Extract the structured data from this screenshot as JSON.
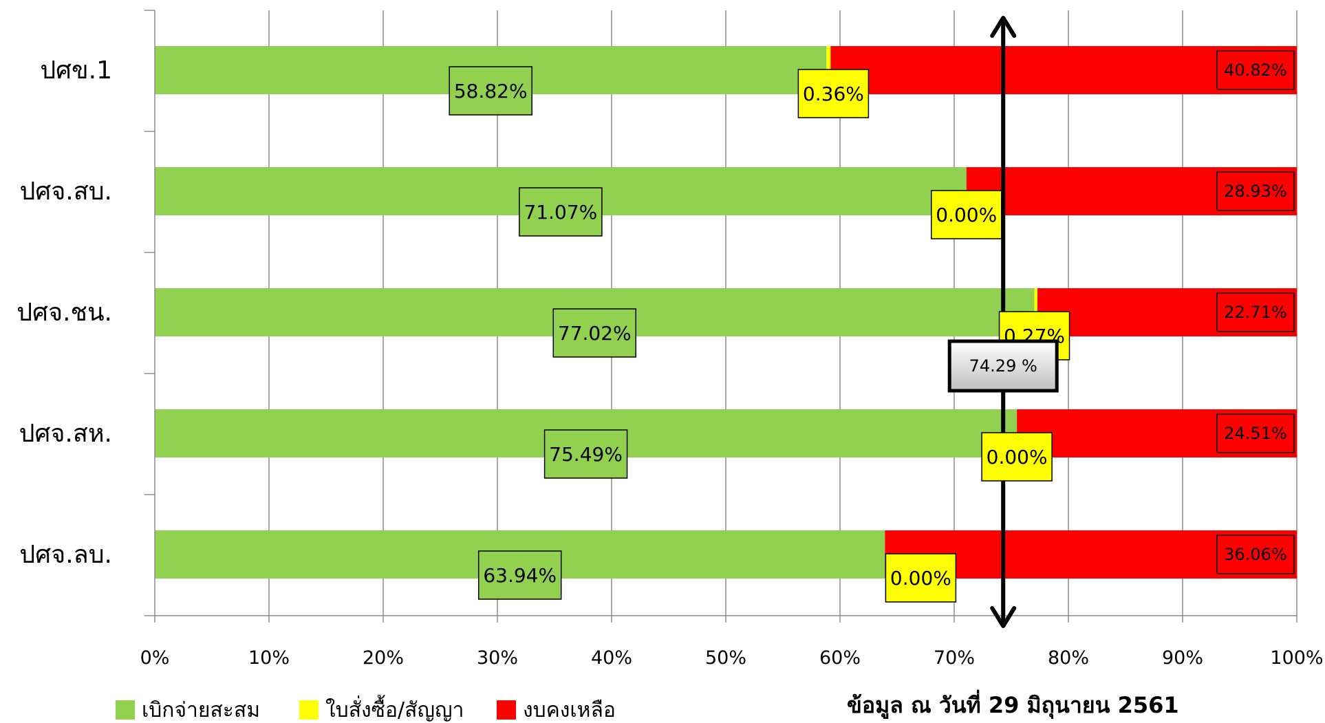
{
  "chart_data": {
    "type": "bar",
    "orientation": "horizontal",
    "stacked": true,
    "categories": [
      "ปศข.1",
      "ปศจ.สบ.",
      "ปศจ.ชน.",
      "ปศจ.สห.",
      "ปศจ.ลบ."
    ],
    "series": [
      {
        "name": "เบิกจ่ายสะสม",
        "color": "#92d050",
        "values": [
          58.82,
          71.07,
          77.02,
          75.49,
          63.94
        ],
        "labels": [
          "58.82%",
          "71.07%",
          "77.02%",
          "75.49%",
          "63.94%"
        ]
      },
      {
        "name": "ใบสั่งซื้อ/สัญญา",
        "color": "#ffff00",
        "values": [
          0.36,
          0.0,
          0.27,
          0.0,
          0.0
        ],
        "labels": [
          "0.36%",
          "0.00%",
          "0.27%",
          "0.00%",
          "0.00%"
        ]
      },
      {
        "name": "งบคงเหลือ",
        "color": "#ff0000",
        "values": [
          40.82,
          28.93,
          22.71,
          24.51,
          36.06
        ],
        "labels": [
          "40.82%",
          "28.93%",
          "22.71%",
          "24.51%",
          "36.06%"
        ]
      }
    ],
    "xlim": [
      0,
      100
    ],
    "x_ticks": [
      "0%",
      "10%",
      "20%",
      "30%",
      "40%",
      "50%",
      "60%",
      "70%",
      "80%",
      "90%",
      "100%"
    ],
    "grid": "vertical",
    "legend_position": "bottom-left",
    "reference_line": {
      "value": 74.29,
      "label": "74.29 %"
    },
    "annotation": "ข้อมูล ณ วันที่ 29 มิถุนายน 2561"
  }
}
